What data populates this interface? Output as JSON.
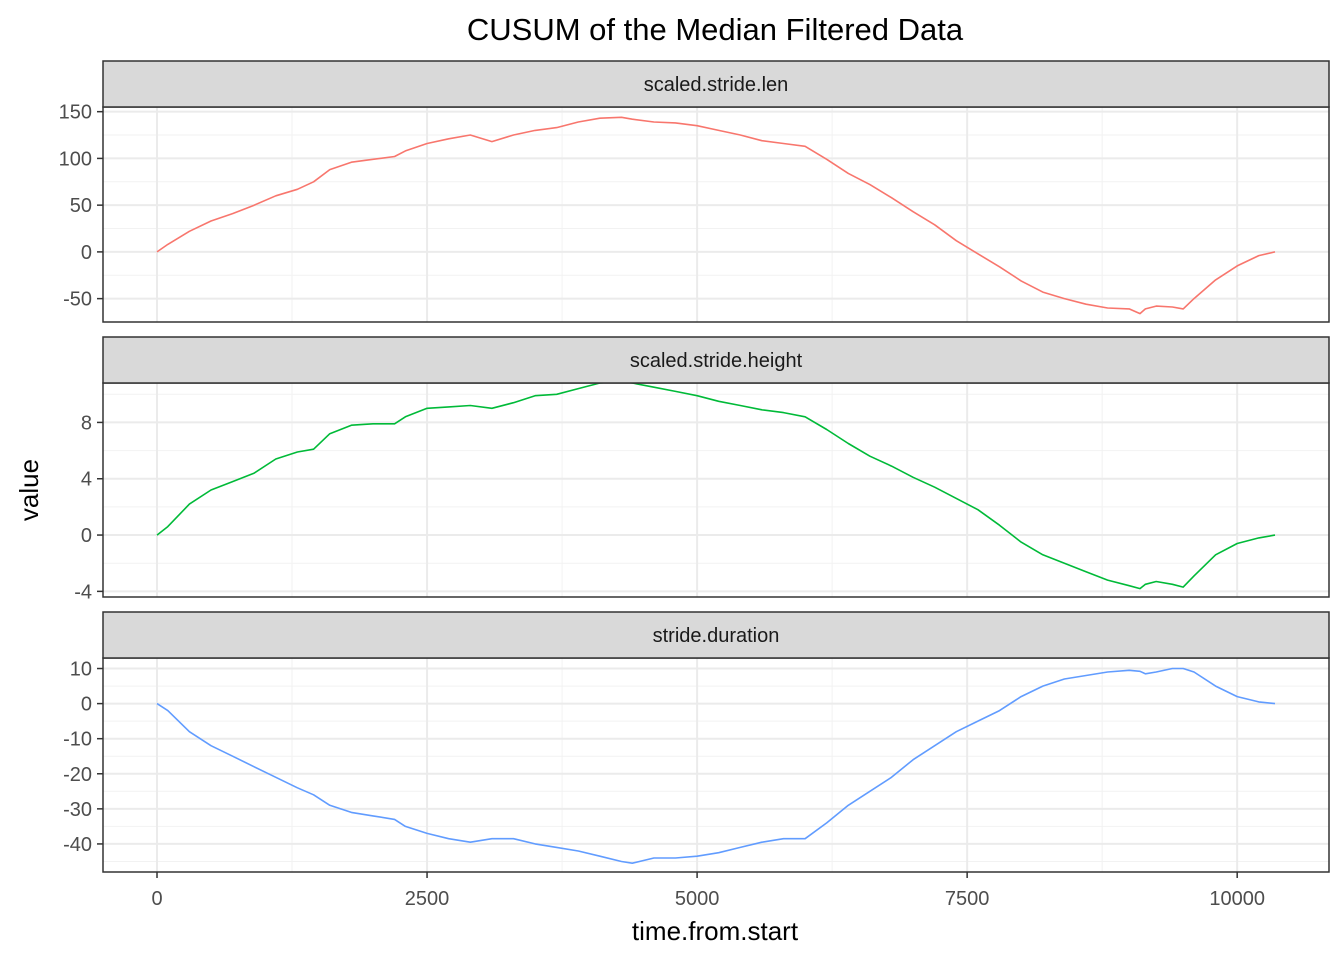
{
  "chart_data": {
    "type": "line",
    "title": "CUSUM of the Median Filtered Data",
    "xlabel": "time.from.start",
    "ylabel": "value",
    "xlim": [
      -500,
      10850
    ],
    "x_ticks": [
      0,
      2500,
      5000,
      7500,
      10000
    ],
    "x_tick_labels": [
      "0",
      "2500",
      "5000",
      "7500",
      "10000"
    ],
    "grid": true,
    "legend": "none",
    "panels": [
      {
        "strip": "scaled.stride.len",
        "color": "#F8766D",
        "ylim": [
          -75,
          155
        ],
        "y_ticks": [
          -50,
          0,
          50,
          100,
          150
        ],
        "y_tick_labels": [
          "-50",
          "0",
          "50",
          "100",
          "150"
        ],
        "x": [
          0,
          100,
          300,
          500,
          700,
          900,
          1100,
          1300,
          1450,
          1600,
          1800,
          2000,
          2200,
          2300,
          2500,
          2700,
          2900,
          3100,
          3300,
          3500,
          3700,
          3900,
          4100,
          4300,
          4400,
          4600,
          4800,
          5000,
          5200,
          5400,
          5600,
          5800,
          6000,
          6200,
          6400,
          6600,
          6800,
          7000,
          7200,
          7400,
          7600,
          7800,
          8000,
          8200,
          8400,
          8600,
          8800,
          9000,
          9100,
          9150,
          9250,
          9400,
          9500,
          9600,
          9800,
          10000,
          10200,
          10350
        ],
        "y": [
          0,
          8,
          22,
          33,
          41,
          50,
          60,
          67,
          75,
          88,
          96,
          99,
          102,
          108,
          116,
          121,
          125,
          118,
          125,
          130,
          133,
          139,
          143,
          144,
          142,
          139,
          138,
          135,
          130,
          125,
          119,
          116,
          113,
          99,
          84,
          72,
          58,
          43,
          29,
          12,
          -2,
          -16,
          -31,
          -43,
          -50,
          -56,
          -60,
          -61,
          -66,
          -61,
          -58,
          -59,
          -61,
          -50,
          -30,
          -15,
          -4,
          0
        ]
      },
      {
        "strip": "scaled.stride.height",
        "color": "#00BA38",
        "ylim": [
          -4.4,
          10.8
        ],
        "y_ticks": [
          -4,
          0,
          4,
          8
        ],
        "y_tick_labels": [
          "-4",
          "0",
          "4",
          "8"
        ],
        "x": [
          0,
          100,
          300,
          500,
          700,
          900,
          1100,
          1300,
          1450,
          1600,
          1800,
          2000,
          2200,
          2300,
          2500,
          2700,
          2900,
          3100,
          3300,
          3500,
          3700,
          3900,
          4100,
          4300,
          4400,
          4600,
          4800,
          5000,
          5200,
          5400,
          5600,
          5800,
          6000,
          6200,
          6400,
          6600,
          6800,
          7000,
          7200,
          7400,
          7600,
          7800,
          8000,
          8200,
          8400,
          8600,
          8800,
          9000,
          9100,
          9150,
          9250,
          9400,
          9500,
          9600,
          9800,
          10000,
          10200,
          10350
        ],
        "y": [
          0,
          0.6,
          2.2,
          3.2,
          3.8,
          4.4,
          5.4,
          5.9,
          6.1,
          7.2,
          7.8,
          7.9,
          7.9,
          8.4,
          9.0,
          9.1,
          9.2,
          9.0,
          9.4,
          9.9,
          10.0,
          10.4,
          10.8,
          10.9,
          10.8,
          10.5,
          10.2,
          9.9,
          9.5,
          9.2,
          8.9,
          8.7,
          8.4,
          7.5,
          6.5,
          5.6,
          4.9,
          4.1,
          3.4,
          2.6,
          1.8,
          0.7,
          -0.5,
          -1.4,
          -2.0,
          -2.6,
          -3.2,
          -3.6,
          -3.8,
          -3.5,
          -3.3,
          -3.5,
          -3.7,
          -2.9,
          -1.4,
          -0.6,
          -0.2,
          0
        ]
      },
      {
        "strip": "stride.duration",
        "color": "#619CFF",
        "ylim": [
          -48,
          13
        ],
        "y_ticks": [
          -40,
          -30,
          -20,
          -10,
          0,
          10
        ],
        "y_tick_labels": [
          "-40",
          "-30",
          "-20",
          "-10",
          "0",
          "10"
        ],
        "x": [
          0,
          100,
          300,
          500,
          700,
          900,
          1100,
          1300,
          1450,
          1600,
          1800,
          2000,
          2200,
          2300,
          2500,
          2700,
          2900,
          3100,
          3300,
          3500,
          3700,
          3900,
          4100,
          4300,
          4400,
          4600,
          4800,
          5000,
          5200,
          5400,
          5600,
          5800,
          6000,
          6200,
          6400,
          6600,
          6800,
          7000,
          7200,
          7400,
          7600,
          7800,
          8000,
          8200,
          8400,
          8600,
          8800,
          9000,
          9100,
          9150,
          9250,
          9400,
          9500,
          9600,
          9800,
          10000,
          10200,
          10350
        ],
        "y": [
          0,
          -2,
          -8,
          -12,
          -15,
          -18,
          -21,
          -24,
          -26,
          -29,
          -31,
          -32,
          -33,
          -35,
          -37,
          -38.5,
          -39.5,
          -38.5,
          -38.5,
          -40,
          -41,
          -42,
          -43.5,
          -45,
          -45.5,
          -44,
          -44,
          -43.5,
          -42.5,
          -41,
          -39.5,
          -38.5,
          -38.5,
          -34,
          -29,
          -25,
          -21,
          -16,
          -12,
          -8,
          -5,
          -2,
          2,
          5,
          7,
          8,
          9,
          9.5,
          9.2,
          8.5,
          9,
          10,
          10,
          9,
          5,
          2,
          0.5,
          0
        ]
      }
    ]
  }
}
